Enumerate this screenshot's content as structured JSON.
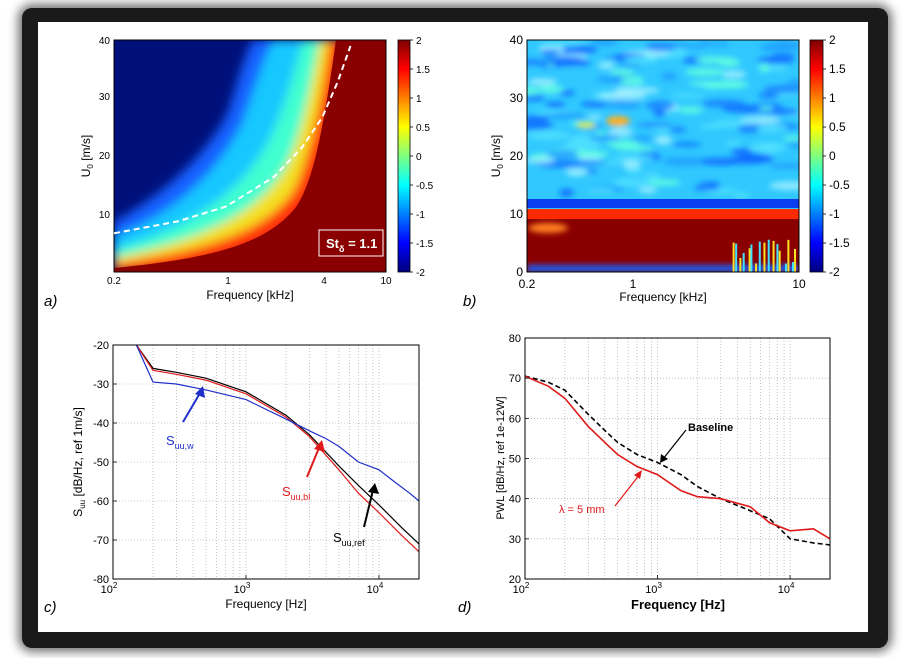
{
  "panels": {
    "a": {
      "panel_label": "a)",
      "xlabel": "Frequency [kHz]",
      "ylabel_main": "U",
      "ylabel_sub": "0",
      "ylabel_unit": " [m/s]",
      "xticks": [
        "0.2",
        "1",
        "4",
        "10"
      ],
      "yticks": [
        "10",
        "20",
        "30",
        "40"
      ],
      "colorbar_ticks": [
        "2",
        "1.5",
        "1",
        "0.5",
        "0",
        "-0.5",
        "-1",
        "-1.5",
        "-2"
      ],
      "annotation_main": "St",
      "annotation_sub": "δ",
      "annotation_value": " = 1.1"
    },
    "b": {
      "panel_label": "b)",
      "xlabel": "Frequency [kHz]",
      "ylabel_main": "U",
      "ylabel_sub": "0",
      "ylabel_unit": " [m/s]",
      "xticks": [
        "0.2",
        "1",
        "10"
      ],
      "yticks": [
        "0",
        "10",
        "20",
        "30",
        "40"
      ],
      "colorbar_ticks": [
        "2",
        "1.5",
        "1",
        "0.5",
        "0",
        "-0.5",
        "-1",
        "-1.5",
        "-2"
      ]
    },
    "c": {
      "panel_label": "c)",
      "xlabel": "Frequency [Hz]",
      "ylabel_main": "S",
      "ylabel_sub": "uu",
      "ylabel_unit": " [dB/Hz, ref 1m/s]",
      "xticks_base": "10",
      "xticks_exp": [
        "2",
        "3",
        "4"
      ],
      "yticks": [
        "-20",
        "-30",
        "-40",
        "-50",
        "-60",
        "-70",
        "-80"
      ],
      "labels": [
        {
          "main": "S",
          "sub": "uu,w",
          "color": "#1f2fcc"
        },
        {
          "main": "S",
          "sub": "uu,bl",
          "color": "#e01a1a"
        },
        {
          "main": "S",
          "sub": "uu,ref",
          "color": "#000000"
        }
      ]
    },
    "d": {
      "panel_label": "d)",
      "xlabel": "Frequency [Hz]",
      "ylabel": "PWL [dB/Hz, ref 1e-12W]",
      "xticks_base": "10",
      "xticks_exp": [
        "2",
        "3",
        "4"
      ],
      "yticks": [
        "80",
        "70",
        "60",
        "50",
        "40",
        "30",
        "20"
      ],
      "labels": [
        {
          "text": "Baseline",
          "color": "#000000"
        },
        {
          "text": "λ = 5 mm",
          "color": "#e01a1a"
        }
      ]
    }
  },
  "chart_data": [
    {
      "type": "heatmap",
      "panel": "a",
      "xlabel": "Frequency [kHz]",
      "ylabel": "U0 [m/s]",
      "xscale": "log",
      "xlim": [
        0.2,
        10
      ],
      "ylim": [
        1,
        40
      ],
      "clim": [
        -2,
        2
      ],
      "colormap": "jet",
      "annotation": "Stδ = 1.1",
      "guide_line": {
        "style": "dashed",
        "color": "#ffffff",
        "f_kHz": [
          0.2,
          0.5,
          1,
          2,
          3,
          4,
          5,
          6
        ],
        "u": [
          7.5,
          9.5,
          12,
          17,
          22,
          27,
          33,
          39
        ]
      }
    },
    {
      "type": "heatmap",
      "panel": "b",
      "xlabel": "Frequency [kHz]",
      "ylabel": "U0 [m/s]",
      "xscale": "log",
      "xlim": [
        0.2,
        10
      ],
      "ylim": [
        0,
        40
      ],
      "clim": [
        -2,
        2
      ],
      "colormap": "jet"
    },
    {
      "type": "line",
      "panel": "c",
      "xlabel": "Frequency [Hz]",
      "ylabel": "Suu [dB/Hz, ref 1m/s]",
      "xscale": "log",
      "xlim": [
        100,
        20000
      ],
      "ylim": [
        -80,
        -20
      ],
      "grid": true,
      "series": [
        {
          "name": "Suu,ref",
          "color": "#000000",
          "x": [
            150,
            200,
            300,
            500,
            1000,
            2000,
            3000,
            5000,
            7000,
            10000,
            15000,
            20000
          ],
          "y": [
            -20,
            -26,
            -27,
            -28.5,
            -32,
            -38,
            -43,
            -51,
            -56,
            -61,
            -67,
            -71
          ]
        },
        {
          "name": "Suu,bl",
          "color": "#e01a1a",
          "x": [
            150,
            200,
            300,
            500,
            1000,
            2000,
            3000,
            5000,
            7000,
            10000,
            15000,
            20000
          ],
          "y": [
            -20,
            -26.5,
            -27.5,
            -29,
            -32.5,
            -38.5,
            -43.5,
            -52,
            -58,
            -63,
            -69,
            -73
          ]
        },
        {
          "name": "Suu,w",
          "color": "#1f2fcc",
          "x": [
            150,
            200,
            300,
            500,
            1000,
            2000,
            3000,
            4000,
            5000,
            7000,
            10000,
            13000,
            17000,
            20000
          ],
          "y": [
            -20,
            -29.5,
            -30,
            -31.5,
            -34,
            -39,
            -42,
            -44,
            -46,
            -50,
            -52,
            -55,
            -58,
            -60
          ]
        }
      ]
    },
    {
      "type": "line",
      "panel": "d",
      "xlabel": "Frequency [Hz]",
      "ylabel": "PWL [dB/Hz, ref 1e-12W]",
      "xscale": "log",
      "xlim": [
        100,
        20000
      ],
      "ylim": [
        20,
        80
      ],
      "grid": true,
      "series": [
        {
          "name": "Baseline",
          "color": "#000000",
          "style": "dashed",
          "x": [
            100,
            150,
            200,
            300,
            400,
            500,
            700,
            1000,
            1500,
            2000,
            3000,
            5000,
            7000,
            10000,
            15000,
            20000
          ],
          "y": [
            70.5,
            69,
            67,
            61,
            57,
            54,
            51,
            49,
            46,
            43,
            40,
            37,
            35,
            30,
            29,
            28.5
          ]
        },
        {
          "name": "λ = 5 mm",
          "color": "#e01a1a",
          "style": "solid",
          "x": [
            100,
            150,
            200,
            300,
            400,
            500,
            700,
            1000,
            1500,
            2000,
            3000,
            5000,
            7000,
            10000,
            15000,
            20000
          ],
          "y": [
            70.5,
            68,
            65,
            58,
            54,
            51,
            48,
            46,
            42,
            40.5,
            40,
            38,
            34,
            32,
            32.5,
            30
          ]
        }
      ]
    }
  ]
}
